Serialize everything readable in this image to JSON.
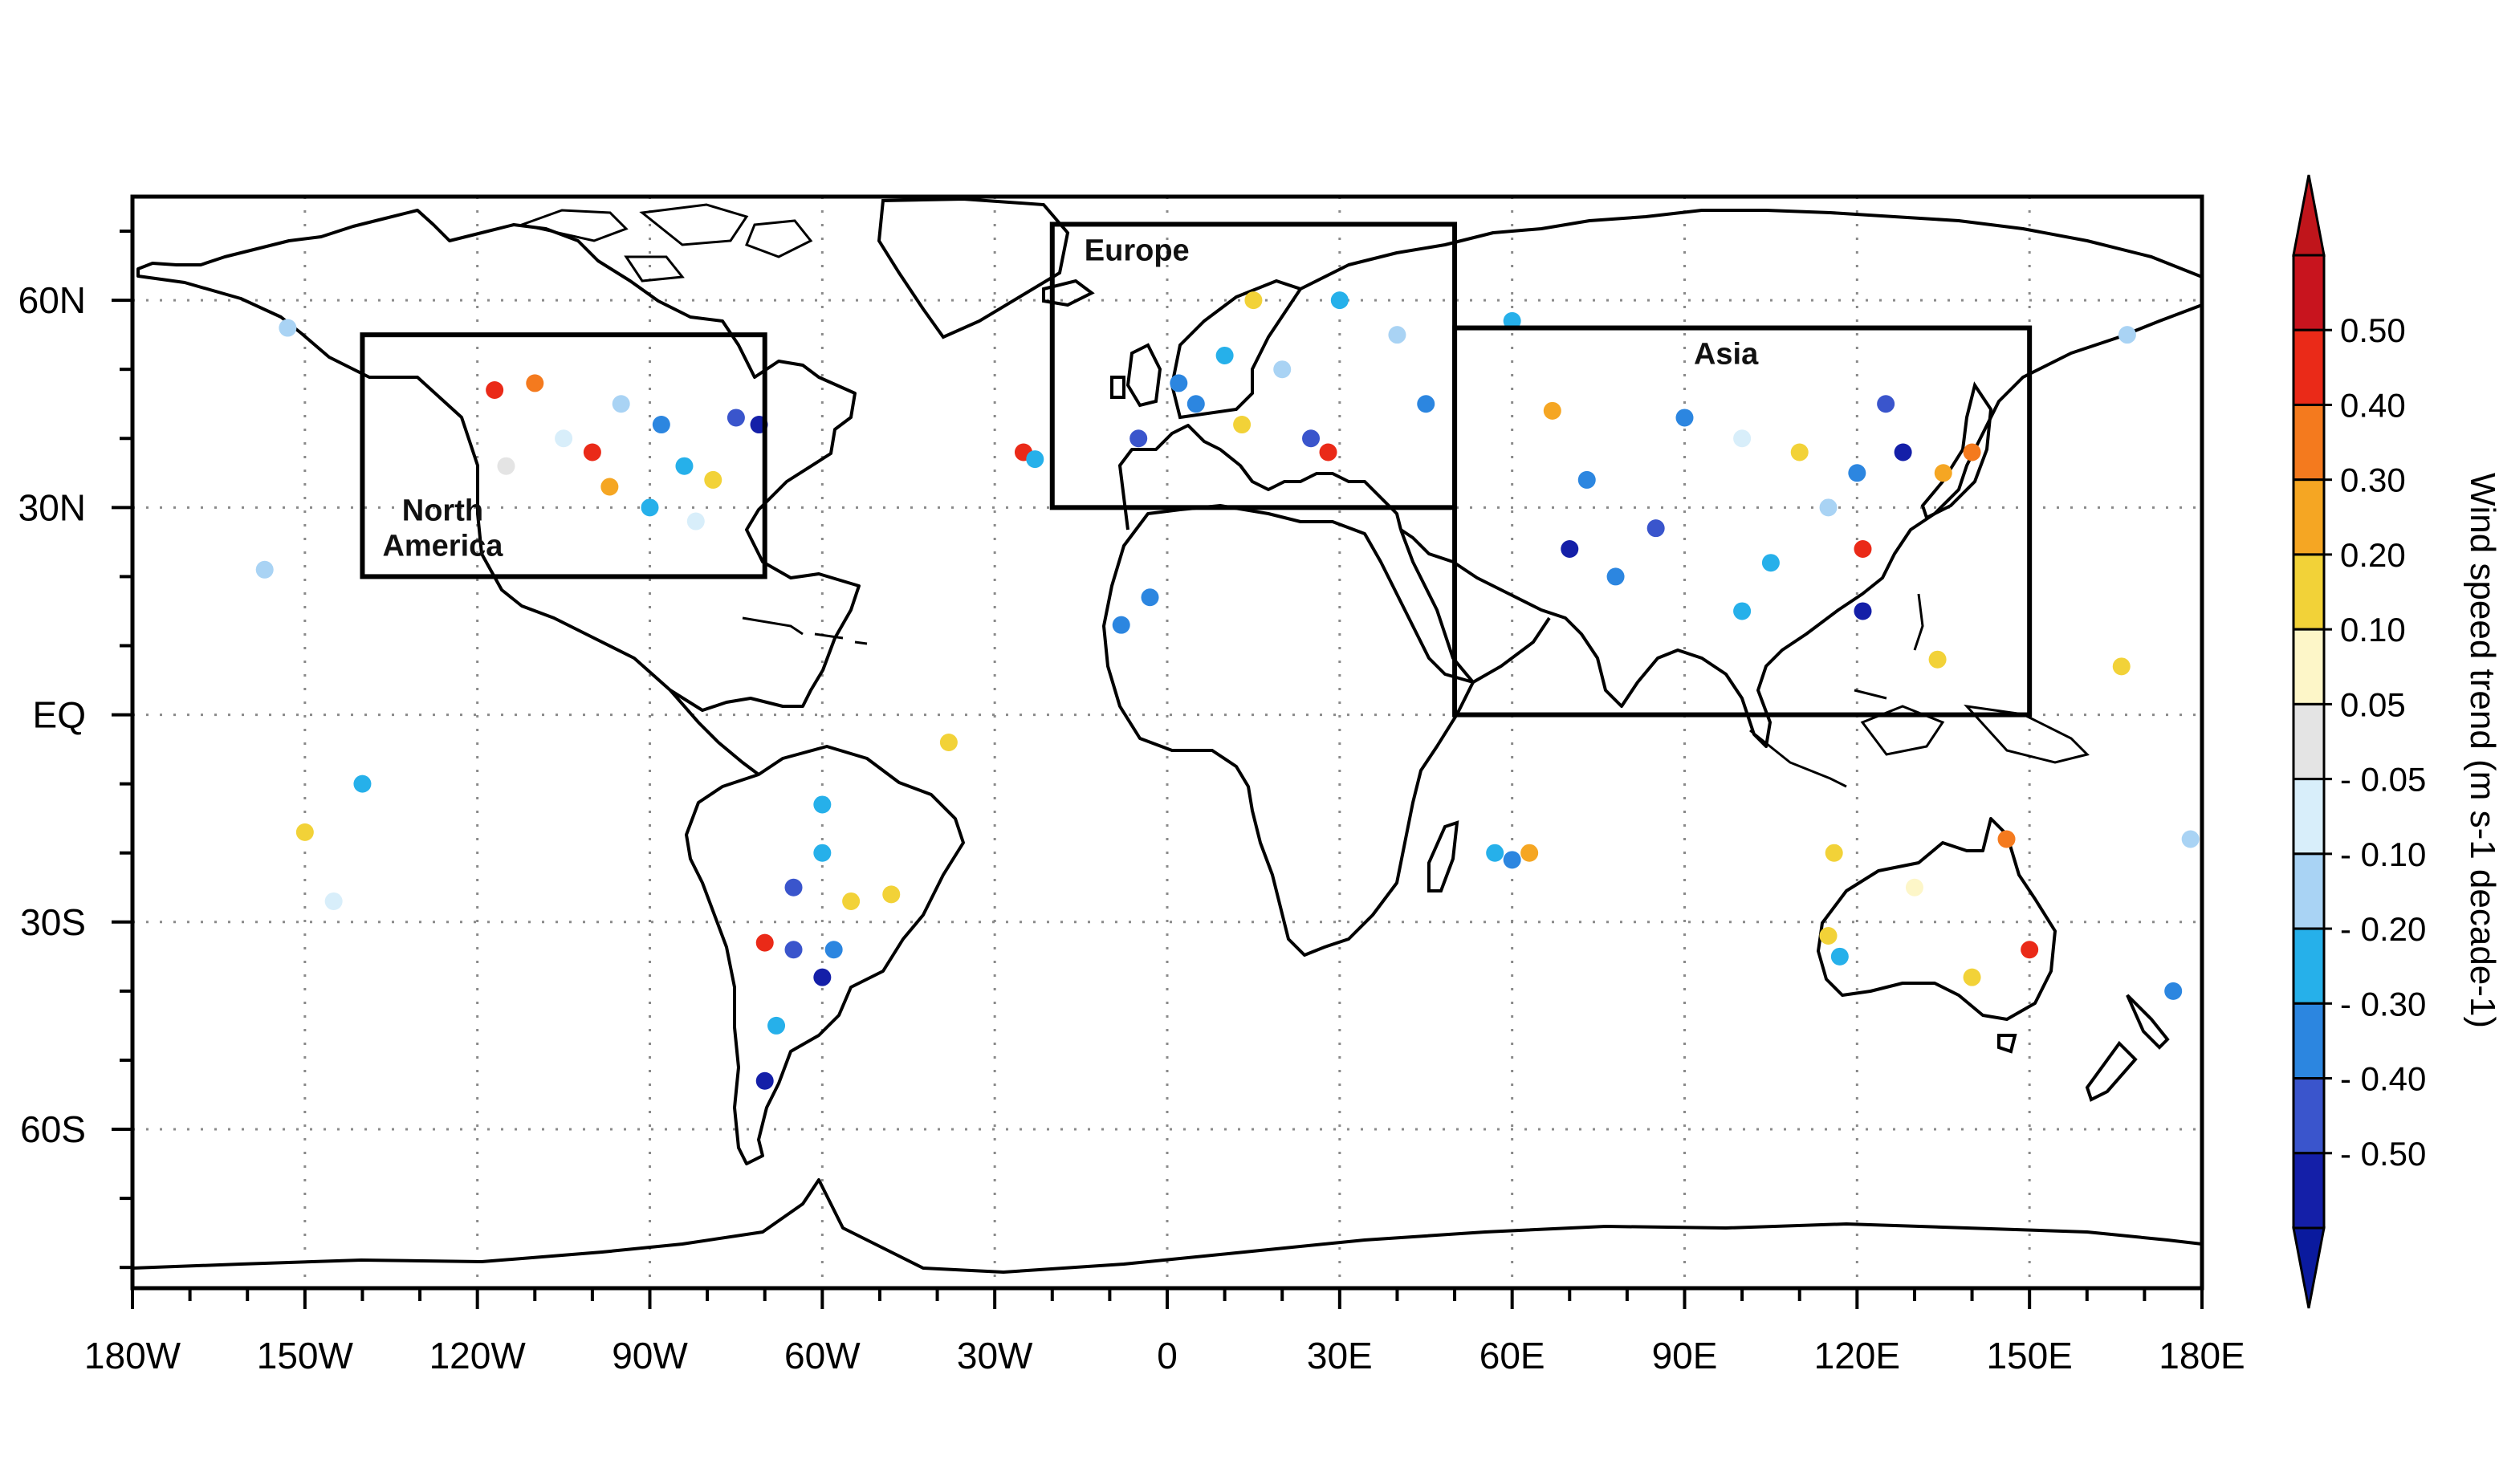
{
  "map": {
    "projection": "equirectangular",
    "extent": {
      "lon": [
        -180,
        180
      ],
      "lat": [
        -90,
        90
      ]
    },
    "lon_ticks": [
      {
        "value": -180,
        "label": "180W"
      },
      {
        "value": -150,
        "label": "150W"
      },
      {
        "value": -120,
        "label": "120W"
      },
      {
        "value": -90,
        "label": "90W"
      },
      {
        "value": -60,
        "label": "60W"
      },
      {
        "value": -30,
        "label": "30W"
      },
      {
        "value": 0,
        "label": "0"
      },
      {
        "value": 30,
        "label": "30E"
      },
      {
        "value": 60,
        "label": "60E"
      },
      {
        "value": 90,
        "label": "90E"
      },
      {
        "value": 120,
        "label": "120E"
      },
      {
        "value": 150,
        "label": "150E"
      },
      {
        "value": 180,
        "label": "180E"
      }
    ],
    "lat_ticks": [
      {
        "value": 60,
        "label": "60N"
      },
      {
        "value": 30,
        "label": "30N"
      },
      {
        "value": 0,
        "label": "EQ"
      },
      {
        "value": -30,
        "label": "30S"
      },
      {
        "value": -60,
        "label": "60S"
      }
    ],
    "grid": "dotted",
    "regions": [
      {
        "name": "North America",
        "label_lines": [
          "North",
          "America"
        ],
        "lon": [
          -140,
          -70
        ],
        "lat": [
          20,
          55
        ]
      },
      {
        "name": "Europe",
        "label_lines": [
          "Europe"
        ],
        "lon": [
          -20,
          50
        ],
        "lat": [
          30,
          71
        ]
      },
      {
        "name": "Asia",
        "label_lines": [
          "Asia"
        ],
        "lon": [
          50,
          150
        ],
        "lat": [
          0,
          56
        ]
      }
    ]
  },
  "colorbar": {
    "title": "Wind speed trend (m s-1 decade-1)",
    "labels": [
      "0.50",
      "0.40",
      "0.30",
      "0.20",
      "0.10",
      "0.05",
      "- 0.05",
      "- 0.10",
      "- 0.20",
      "- 0.30",
      "- 0.40",
      "- 0.50"
    ],
    "colors": [
      "#c8141e",
      "#ea2a18",
      "#f47a1e",
      "#f5a623",
      "#f2d238",
      "#fdf6c8",
      "#e4e4e4",
      "#d8eefa",
      "#a9d3f4",
      "#26b0ea",
      "#2c86e0",
      "#3a55cc",
      "#141fa8"
    ],
    "top_arrow_color": "#c0151b",
    "bottom_arrow_color": "#0a1a9e"
  },
  "station_trend_dots": [
    {
      "lon": -153,
      "lat": 56,
      "c": 8
    },
    {
      "lon": -110,
      "lat": 48,
      "c": 2
    },
    {
      "lon": -105,
      "lat": 40,
      "c": 7
    },
    {
      "lon": -97,
      "lat": 33,
      "c": 3
    },
    {
      "lon": -84,
      "lat": 36,
      "c": 9
    },
    {
      "lon": -79,
      "lat": 34,
      "c": 4
    },
    {
      "lon": -75,
      "lat": 43,
      "c": 11
    },
    {
      "lon": -71,
      "lat": 42,
      "c": 12
    },
    {
      "lon": -95,
      "lat": 45,
      "c": 8
    },
    {
      "lon": -88,
      "lat": 42,
      "c": 10
    },
    {
      "lon": -100,
      "lat": 38,
      "c": 1
    },
    {
      "lon": -117,
      "lat": 47,
      "c": 1
    },
    {
      "lon": -90,
      "lat": 30,
      "c": 9
    },
    {
      "lon": -82,
      "lat": 28,
      "c": 7
    },
    {
      "lon": -115,
      "lat": 36,
      "c": 6
    },
    {
      "lon": -157,
      "lat": 21,
      "c": 8
    },
    {
      "lon": -150,
      "lat": -17,
      "c": 4
    },
    {
      "lon": -140,
      "lat": -10,
      "c": 9
    },
    {
      "lon": -145,
      "lat": -27,
      "c": 7
    },
    {
      "lon": 2,
      "lat": 48,
      "c": 10
    },
    {
      "lon": 10,
      "lat": 52,
      "c": 9
    },
    {
      "lon": 20,
      "lat": 50,
      "c": 8
    },
    {
      "lon": 25,
      "lat": 40,
      "c": 11
    },
    {
      "lon": 28,
      "lat": 38,
      "c": 1
    },
    {
      "lon": 13,
      "lat": 42,
      "c": 4
    },
    {
      "lon": -5,
      "lat": 40,
      "c": 11
    },
    {
      "lon": 30,
      "lat": 60,
      "c": 9
    },
    {
      "lon": 40,
      "lat": 55,
      "c": 8
    },
    {
      "lon": 45,
      "lat": 45,
      "c": 10
    },
    {
      "lon": 15,
      "lat": 60,
      "c": 4
    },
    {
      "lon": 5,
      "lat": 45,
      "c": 10
    },
    {
      "lon": -25,
      "lat": 38,
      "c": 1
    },
    {
      "lon": -23,
      "lat": 37,
      "c": 9
    },
    {
      "lon": 67,
      "lat": 44,
      "c": 3
    },
    {
      "lon": 73,
      "lat": 34,
      "c": 10
    },
    {
      "lon": 90,
      "lat": 43,
      "c": 10
    },
    {
      "lon": 100,
      "lat": 40,
      "c": 7
    },
    {
      "lon": 110,
      "lat": 38,
      "c": 4
    },
    {
      "lon": 115,
      "lat": 30,
      "c": 8
    },
    {
      "lon": 120,
      "lat": 35,
      "c": 10
    },
    {
      "lon": 125,
      "lat": 45,
      "c": 11
    },
    {
      "lon": 128,
      "lat": 38,
      "c": 12
    },
    {
      "lon": 135,
      "lat": 35,
      "c": 3
    },
    {
      "lon": 140,
      "lat": 38,
      "c": 2
    },
    {
      "lon": 121,
      "lat": 24,
      "c": 1
    },
    {
      "lon": 121,
      "lat": 15,
      "c": 12
    },
    {
      "lon": 100,
      "lat": 15,
      "c": 9
    },
    {
      "lon": 78,
      "lat": 20,
      "c": 10
    },
    {
      "lon": 70,
      "lat": 24,
      "c": 12
    },
    {
      "lon": 60,
      "lat": 57,
      "c": 9
    },
    {
      "lon": 85,
      "lat": 27,
      "c": 11
    },
    {
      "lon": 105,
      "lat": 22,
      "c": 9
    },
    {
      "lon": 134,
      "lat": 8,
      "c": 4
    },
    {
      "lon": 166,
      "lat": 7,
      "c": 4
    },
    {
      "lon": 167,
      "lat": 55,
      "c": 8
    },
    {
      "lon": -60,
      "lat": -20,
      "c": 9
    },
    {
      "lon": -55,
      "lat": -27,
      "c": 4
    },
    {
      "lon": -65,
      "lat": -25,
      "c": 11
    },
    {
      "lon": -70,
      "lat": -33,
      "c": 1
    },
    {
      "lon": -68,
      "lat": -45,
      "c": 9
    },
    {
      "lon": -60,
      "lat": -38,
      "c": 12
    },
    {
      "lon": -58,
      "lat": -34,
      "c": 10
    },
    {
      "lon": -48,
      "lat": -26,
      "c": 4
    },
    {
      "lon": -38,
      "lat": -4,
      "c": 4
    },
    {
      "lon": -70,
      "lat": -53,
      "c": 12
    },
    {
      "lon": -65,
      "lat": -34,
      "c": 11
    },
    {
      "lon": 57,
      "lat": -20,
      "c": 9
    },
    {
      "lon": 63,
      "lat": -20,
      "c": 3
    },
    {
      "lon": 115,
      "lat": -32,
      "c": 4
    },
    {
      "lon": 116,
      "lat": -20,
      "c": 4
    },
    {
      "lon": 130,
      "lat": -25,
      "c": 5
    },
    {
      "lon": 146,
      "lat": -18,
      "c": 2
    },
    {
      "lon": 150,
      "lat": -34,
      "c": 1
    },
    {
      "lon": 117,
      "lat": -35,
      "c": 9
    },
    {
      "lon": 140,
      "lat": -38,
      "c": 4
    },
    {
      "lon": 175,
      "lat": -40,
      "c": 10
    },
    {
      "lon": 178,
      "lat": -18,
      "c": 8
    },
    {
      "lon": 60,
      "lat": -21,
      "c": 10
    },
    {
      "lon": -60,
      "lat": -13,
      "c": 9
    },
    {
      "lon": -3,
      "lat": 17,
      "c": 10
    },
    {
      "lon": -8,
      "lat": 13,
      "c": 10
    }
  ]
}
